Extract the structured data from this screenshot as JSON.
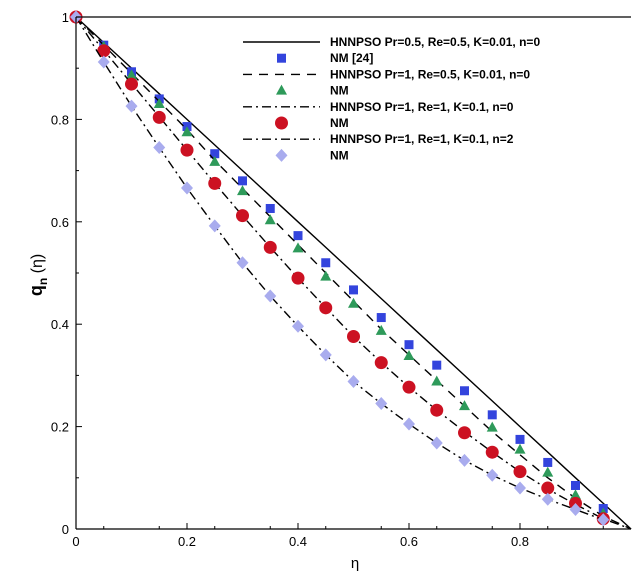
{
  "chart_data": {
    "type": "line",
    "title": "",
    "xlabel": "η",
    "ylabel_main": "q",
    "ylabel_sub": "n",
    "ylabel_arg": " (η)",
    "xlim": [
      0,
      1
    ],
    "ylim": [
      0,
      1
    ],
    "x_ticks": [
      {
        "value": 0,
        "label": "0"
      },
      {
        "value": 0.2,
        "label": "0.2"
      },
      {
        "value": 0.4,
        "label": "0.4"
      },
      {
        "value": 0.6,
        "label": "0.6"
      },
      {
        "value": 0.8,
        "label": "0.8"
      }
    ],
    "y_ticks": [
      {
        "value": 0,
        "label": "0"
      },
      {
        "value": 0.2,
        "label": "0.2"
      },
      {
        "value": 0.4,
        "label": "0.4"
      },
      {
        "value": 0.6,
        "label": "0.6"
      },
      {
        "value": 0.8,
        "label": "0.8"
      },
      {
        "value": 1,
        "label": "1"
      }
    ],
    "grid": false,
    "legend_position": "top-right",
    "series": [
      {
        "name": "HNNPSO Pr=0.5, Re=0.5, K=0.01, n=0",
        "kind": "line",
        "dash": "solid",
        "color": "#000000",
        "x": [
          0,
          0.05,
          0.1,
          0.15,
          0.2,
          0.25,
          0.3,
          0.35,
          0.4,
          0.45,
          0.5,
          0.55,
          0.6,
          0.65,
          0.7,
          0.75,
          0.8,
          0.85,
          0.9,
          0.95,
          1.0
        ],
        "y": [
          1.0,
          0.95,
          0.9,
          0.85,
          0.8,
          0.75,
          0.7,
          0.65,
          0.6,
          0.55,
          0.5,
          0.45,
          0.4,
          0.35,
          0.3,
          0.25,
          0.2,
          0.15,
          0.1,
          0.05,
          0.0
        ]
      },
      {
        "name": "NM [24]",
        "kind": "marker",
        "marker": "square",
        "color": "#3344dd",
        "x": [
          0,
          0.05,
          0.1,
          0.15,
          0.2,
          0.25,
          0.3,
          0.35,
          0.4,
          0.45,
          0.5,
          0.55,
          0.6,
          0.65,
          0.7,
          0.75,
          0.8,
          0.85,
          0.9,
          0.95
        ],
        "y": [
          1.0,
          0.945,
          0.893,
          0.84,
          0.786,
          0.733,
          0.68,
          0.626,
          0.573,
          0.52,
          0.467,
          0.413,
          0.36,
          0.32,
          0.27,
          0.223,
          0.175,
          0.13,
          0.085,
          0.04
        ]
      },
      {
        "name": "HNNPSO Pr=1, Re=0.5, K=0.01, n=0",
        "kind": "line",
        "dash": "dash",
        "color": "#000000",
        "x": [
          0,
          0.05,
          0.1,
          0.15,
          0.2,
          0.25,
          0.3,
          0.35,
          0.4,
          0.45,
          0.5,
          0.55,
          0.6,
          0.65,
          0.7,
          0.75,
          0.8,
          0.85,
          0.9,
          0.95,
          1.0
        ],
        "y": [
          1.0,
          0.945,
          0.89,
          0.835,
          0.78,
          0.72,
          0.665,
          0.61,
          0.555,
          0.5,
          0.445,
          0.39,
          0.34,
          0.29,
          0.24,
          0.19,
          0.145,
          0.1,
          0.06,
          0.025,
          0.0
        ]
      },
      {
        "name": "NM",
        "kind": "marker",
        "marker": "triangle",
        "color": "#2e9a5a",
        "x": [
          0,
          0.05,
          0.1,
          0.15,
          0.2,
          0.25,
          0.3,
          0.35,
          0.4,
          0.45,
          0.5,
          0.55,
          0.6,
          0.65,
          0.7,
          0.75,
          0.8,
          0.85,
          0.9,
          0.95
        ],
        "y": [
          1.0,
          0.942,
          0.886,
          0.83,
          0.775,
          0.717,
          0.66,
          0.603,
          0.548,
          0.493,
          0.44,
          0.387,
          0.338,
          0.288,
          0.24,
          0.198,
          0.155,
          0.11,
          0.066,
          0.03
        ]
      },
      {
        "name": "HNNPSO Pr=1, Re=1, K=0.1, n=0",
        "kind": "line",
        "dash": "dashdot",
        "color": "#000000",
        "x": [
          0,
          0.05,
          0.1,
          0.15,
          0.2,
          0.25,
          0.3,
          0.35,
          0.4,
          0.45,
          0.5,
          0.55,
          0.6,
          0.65,
          0.7,
          0.75,
          0.8,
          0.85,
          0.9,
          0.95,
          1.0
        ],
        "y": [
          1.0,
          0.935,
          0.87,
          0.805,
          0.74,
          0.675,
          0.612,
          0.55,
          0.49,
          0.432,
          0.376,
          0.325,
          0.277,
          0.232,
          0.19,
          0.15,
          0.112,
          0.078,
          0.048,
          0.02,
          0.0
        ]
      },
      {
        "name": "NM",
        "kind": "marker",
        "marker": "circle",
        "color": "#cc1122",
        "x": [
          0,
          0.05,
          0.1,
          0.15,
          0.2,
          0.25,
          0.3,
          0.35,
          0.4,
          0.45,
          0.5,
          0.55,
          0.6,
          0.65,
          0.7,
          0.75,
          0.8,
          0.85,
          0.9,
          0.95
        ],
        "y": [
          1.0,
          0.934,
          0.869,
          0.804,
          0.74,
          0.675,
          0.612,
          0.55,
          0.49,
          0.432,
          0.376,
          0.325,
          0.277,
          0.232,
          0.188,
          0.15,
          0.112,
          0.08,
          0.05,
          0.02
        ]
      },
      {
        "name": "HNNPSO Pr=1, Re=1, K=0.1, n=2",
        "kind": "line",
        "dash": "dashdot",
        "color": "#000000",
        "x": [
          0,
          0.05,
          0.1,
          0.15,
          0.2,
          0.25,
          0.3,
          0.35,
          0.4,
          0.45,
          0.5,
          0.55,
          0.6,
          0.65,
          0.7,
          0.75,
          0.8,
          0.85,
          0.9,
          0.95
        ],
        "y": [
          1.0,
          0.912,
          0.826,
          0.745,
          0.666,
          0.592,
          0.52,
          0.455,
          0.396,
          0.34,
          0.288,
          0.245,
          0.205,
          0.168,
          0.134,
          0.105,
          0.08,
          0.058,
          0.038,
          0.018
        ]
      },
      {
        "name": "NM",
        "kind": "marker",
        "marker": "diamond",
        "color": "#a9acee",
        "x": [
          0,
          0.05,
          0.1,
          0.15,
          0.2,
          0.25,
          0.3,
          0.35,
          0.4,
          0.45,
          0.5,
          0.55,
          0.6,
          0.65,
          0.7,
          0.75,
          0.8,
          0.85,
          0.9,
          0.95
        ],
        "y": [
          1.0,
          0.912,
          0.826,
          0.745,
          0.666,
          0.592,
          0.52,
          0.455,
          0.396,
          0.34,
          0.288,
          0.245,
          0.205,
          0.168,
          0.134,
          0.105,
          0.08,
          0.058,
          0.038,
          0.018
        ]
      }
    ]
  }
}
